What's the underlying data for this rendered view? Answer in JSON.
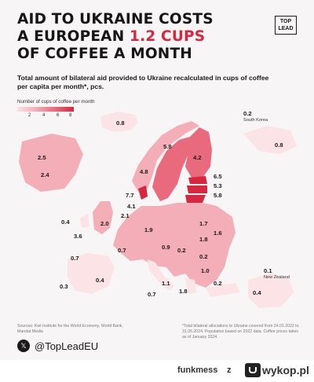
{
  "title": {
    "line1": "AID TO UKRAINE COSTS",
    "line2a": "A EUROPEAN ",
    "highlight": "1.2 CUPS",
    "line3": "OF COFFEE A MONTH"
  },
  "logo": {
    "line1": "TOP",
    "line2": "LEAD"
  },
  "subtitle": "Total amount of bilateral aid provided to Ukraine recalculated in cups of coffee per capita per month*, pcs.",
  "legend": {
    "title": "Number of cups of coffee per month",
    "ticks": [
      "2",
      "4",
      "6",
      "8"
    ]
  },
  "colors": {
    "scale": [
      "#fbe3e6",
      "#f3aeb7",
      "#e86a7c",
      "#d7263d"
    ],
    "accent": "#d7263d"
  },
  "labels": {
    "north_america": [
      {
        "value": "2.5"
      },
      {
        "value": "2.4"
      }
    ],
    "greenland": "0.8",
    "east_asia": [
      {
        "value": "0.2",
        "name": "South Korea"
      },
      {
        "value": "0.8"
      }
    ],
    "oceania": [
      {
        "value": "0.1",
        "name": "New Zealand"
      },
      {
        "value": "0.4"
      }
    ],
    "europe": [
      {
        "value": "5.8"
      },
      {
        "value": "4.8"
      },
      {
        "value": "4.2"
      },
      {
        "value": "6.5"
      },
      {
        "value": "5.3"
      },
      {
        "value": "5.8"
      },
      {
        "value": "7.7"
      },
      {
        "value": "4.1"
      },
      {
        "value": "2.1"
      },
      {
        "value": "0.4"
      },
      {
        "value": "2.0"
      },
      {
        "value": "3.6"
      },
      {
        "value": "1.9"
      },
      {
        "value": "1.7"
      },
      {
        "value": "1.6"
      },
      {
        "value": "1.8"
      },
      {
        "value": "0.7"
      },
      {
        "value": "0.7"
      },
      {
        "value": "0.9"
      },
      {
        "value": "0.2"
      },
      {
        "value": "0.2"
      },
      {
        "value": "1.0"
      },
      {
        "value": "0.3"
      },
      {
        "value": "0.4"
      },
      {
        "value": "1.1"
      },
      {
        "value": "0.7"
      },
      {
        "value": "1.8"
      },
      {
        "value": "0.2"
      }
    ]
  },
  "sources": "Sources: Kiel Institute for the World Economy, World Bank, Mandat Media",
  "note": "*Total bilateral allocations to Ukraine covered from 24.01.2022 to 31.05.2024. Population based on 2022 data. Coffee prices taken as of January 2024.",
  "social": {
    "handle": "@TopLeadEU"
  },
  "footer": {
    "brand": "funkmess",
    "sep": "z",
    "site": "wykop.pl"
  }
}
